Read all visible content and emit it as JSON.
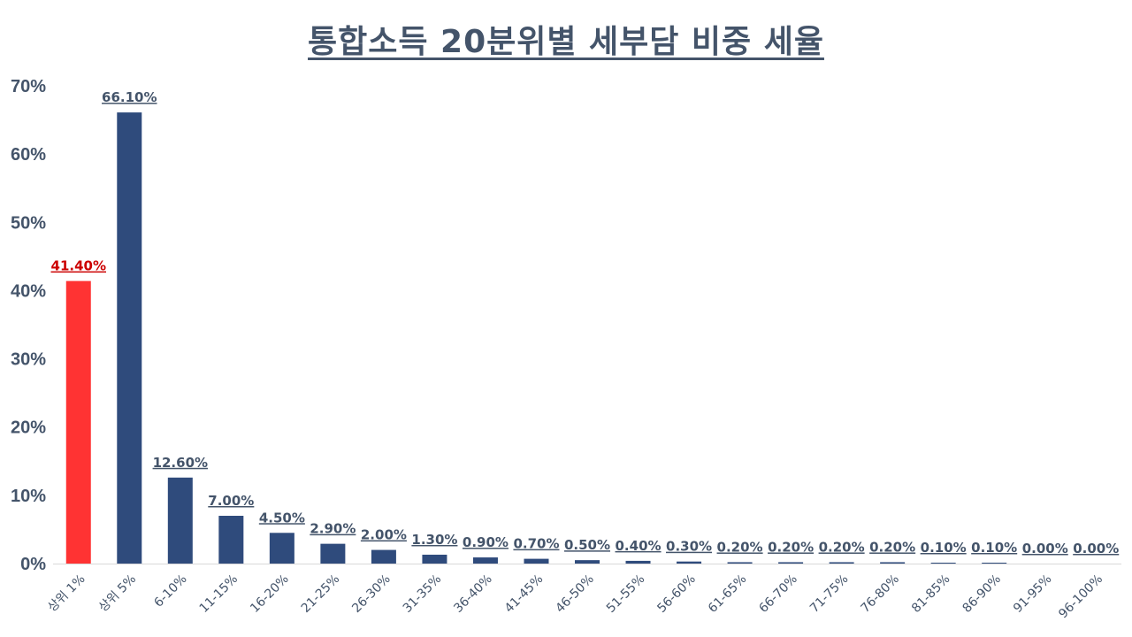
{
  "colors": {
    "bar": "#2f4b7c",
    "highlight": "#ff3333",
    "text": "#44546a",
    "highlight_label": "#cc0000",
    "axis": "#d9d9d9"
  },
  "chart_data": {
    "type": "bar",
    "title": "통합소득 20분위별 세부담 비중 세율",
    "xlabel": "",
    "ylabel": "",
    "ylim": [
      0,
      70
    ],
    "yticks": [
      "0%",
      "10%",
      "20%",
      "30%",
      "40%",
      "50%",
      "60%",
      "70%"
    ],
    "categories": [
      "상위 1%",
      "상위 5%",
      "6-10%",
      "11-15%",
      "16-20%",
      "21-25%",
      "26-30%",
      "31-35%",
      "36-40%",
      "41-45%",
      "46-50%",
      "51-55%",
      "56-60%",
      "61-65%",
      "66-70%",
      "71-75%",
      "76-80%",
      "81-85%",
      "86-90%",
      "91-95%",
      "96-100%"
    ],
    "values": [
      41.4,
      66.1,
      12.6,
      7.0,
      4.5,
      2.9,
      2.0,
      1.3,
      0.9,
      0.7,
      0.5,
      0.4,
      0.3,
      0.2,
      0.2,
      0.2,
      0.2,
      0.1,
      0.1,
      0.0,
      0.0
    ],
    "data_labels": [
      "41.40%",
      "66.10%",
      "12.60%",
      "7.00%",
      "4.50%",
      "2.90%",
      "2.00%",
      "1.30%",
      "0.90%",
      "0.70%",
      "0.50%",
      "0.40%",
      "0.30%",
      "0.20%",
      "0.20%",
      "0.20%",
      "0.20%",
      "0.10%",
      "0.10%",
      "0.00%",
      "0.00%"
    ],
    "highlight_index": 0,
    "grid": false,
    "legend": "none"
  }
}
